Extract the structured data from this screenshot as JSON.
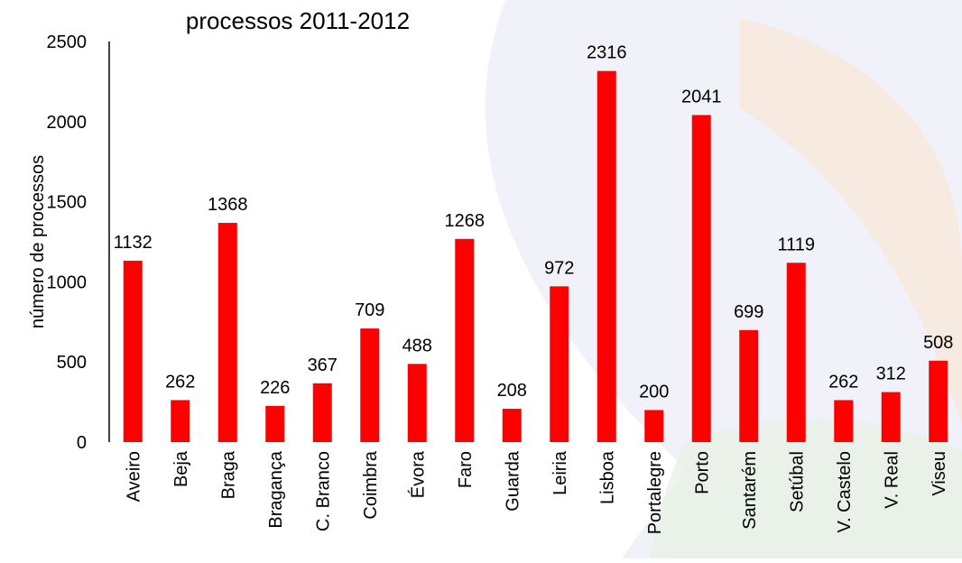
{
  "chart_data": {
    "type": "bar",
    "title": "processos 2011-2012",
    "xlabel": "",
    "ylabel": "número de processos",
    "categories": [
      "Aveiro",
      "Beja",
      "Braga",
      "Bragança",
      "C. Branco",
      "Coimbra",
      "Évora",
      "Faro",
      "Guarda",
      "Leiria",
      "Lisboa",
      "Portalegre",
      "Porto",
      "Santarém",
      "Setúbal",
      "V. Castelo",
      "V. Real",
      "Viseu"
    ],
    "values": [
      1132,
      262,
      1368,
      226,
      367,
      709,
      488,
      1268,
      208,
      972,
      2316,
      200,
      2041,
      699,
      1119,
      262,
      312,
      508
    ],
    "ylim": [
      0,
      2500
    ],
    "yticks": [
      0,
      500,
      1000,
      1500,
      2000,
      2500
    ],
    "grid": false,
    "bar_color": "#ff0000"
  },
  "colors": {
    "background_blue": "#e6e6f4",
    "background_orange": "#f8e7d7",
    "background_green": "#e6f1e3"
  }
}
